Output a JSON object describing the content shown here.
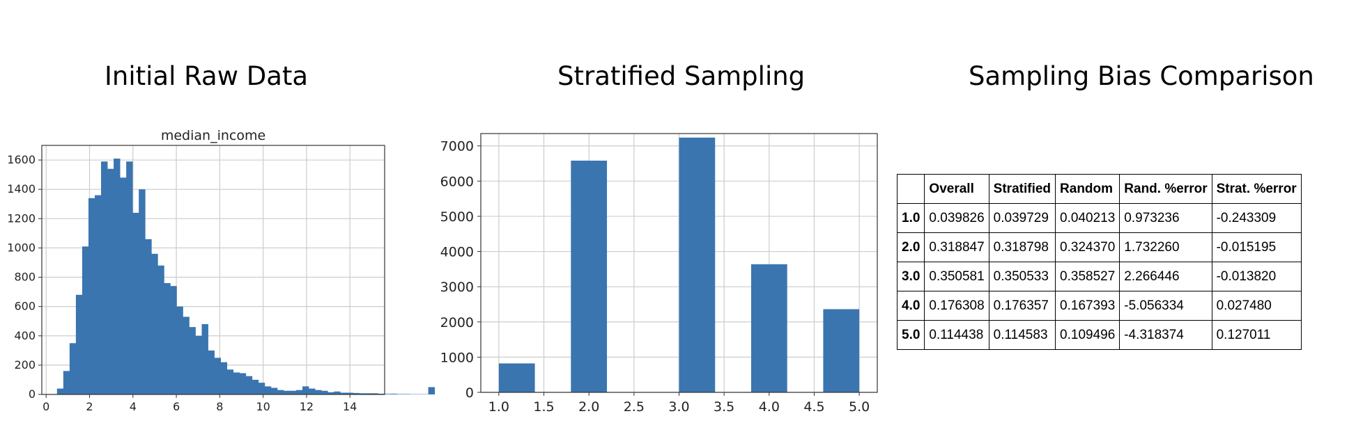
{
  "titles": {
    "left": "Initial Raw Data",
    "middle": "Stratified Sampling",
    "right": "Sampling Bias Comparison"
  },
  "chart_data": [
    {
      "type": "bar",
      "title": "median_income",
      "xlabel": "",
      "ylabel": "",
      "xlim": [
        -0.2,
        15.6
      ],
      "ylim": [
        0,
        1700
      ],
      "xticks": [
        0,
        2,
        4,
        6,
        8,
        10,
        12,
        14
      ],
      "yticks": [
        0,
        200,
        400,
        600,
        800,
        1000,
        1200,
        1400,
        1600
      ],
      "bin_width": 0.29,
      "bin_start": 0.5,
      "values": [
        40,
        160,
        350,
        680,
        1010,
        1340,
        1360,
        1590,
        1540,
        1610,
        1480,
        1590,
        1240,
        1400,
        1060,
        960,
        880,
        760,
        740,
        600,
        530,
        460,
        400,
        480,
        300,
        250,
        220,
        170,
        150,
        145,
        125,
        100,
        80,
        55,
        45,
        30,
        25,
        25,
        30,
        55,
        40,
        30,
        25,
        15,
        20,
        12,
        12,
        10,
        8,
        8,
        8,
        5,
        4,
        5,
        3,
        3,
        2,
        2,
        2,
        50
      ],
      "grid": true
    },
    {
      "type": "bar",
      "title": "",
      "xlabel": "",
      "ylabel": "",
      "xlim": [
        0.8,
        5.2
      ],
      "ylim": [
        0,
        7350
      ],
      "xticks": [
        "1.0",
        "1.5",
        "2.0",
        "2.5",
        "3.0",
        "3.5",
        "4.0",
        "4.5",
        "5.0"
      ],
      "yticks": [
        0,
        1000,
        2000,
        3000,
        4000,
        5000,
        6000,
        7000
      ],
      "bars": [
        {
          "x0": 1.0,
          "x1": 1.4,
          "value": 822
        },
        {
          "x0": 1.8,
          "x1": 2.2,
          "value": 6581
        },
        {
          "x0": 3.0,
          "x1": 3.4,
          "value": 7236
        },
        {
          "x0": 3.8,
          "x1": 4.2,
          "value": 3639
        },
        {
          "x0": 4.6,
          "x1": 5.0,
          "value": 2362
        }
      ],
      "grid": true
    },
    {
      "type": "table",
      "columns": [
        "",
        "Overall",
        "Stratified",
        "Random",
        "Rand. %error",
        "Strat. %error"
      ],
      "rows": [
        [
          "1.0",
          "0.039826",
          "0.039729",
          "0.040213",
          "0.973236",
          "-0.243309"
        ],
        [
          "2.0",
          "0.318847",
          "0.318798",
          "0.324370",
          "1.732260",
          "-0.015195"
        ],
        [
          "3.0",
          "0.350581",
          "0.350533",
          "0.358527",
          "2.266446",
          "-0.013820"
        ],
        [
          "4.0",
          "0.176308",
          "0.176357",
          "0.167393",
          "-5.056334",
          "0.027480"
        ],
        [
          "5.0",
          "0.114438",
          "0.114583",
          "0.109496",
          "-4.318374",
          "0.127011"
        ]
      ]
    }
  ],
  "colors": {
    "bar": "#3a75b0",
    "grid": "#cccccc",
    "axis": "#333333"
  }
}
